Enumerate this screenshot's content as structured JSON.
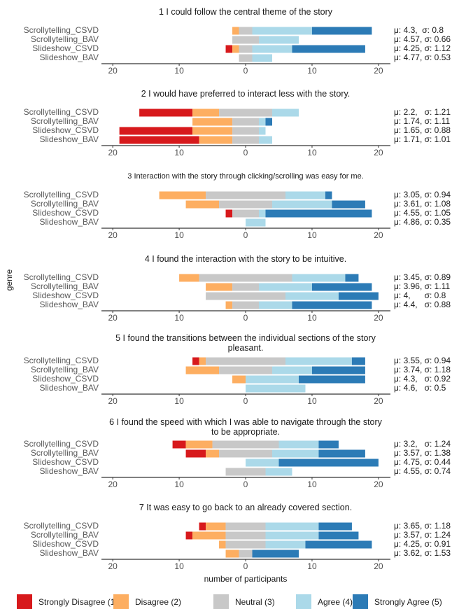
{
  "legend": [
    {
      "name": "Strongly Disagree (1)",
      "color": "#d7191c"
    },
    {
      "name": "Disagree (2)",
      "color": "#fdae61"
    },
    {
      "name": "Neutral (3)",
      "color": "#c8c8c8"
    },
    {
      "name": "Agree (4)",
      "color": "#abd9e9"
    },
    {
      "name": "Strongly Agree (5)",
      "color": "#2c7bb6"
    }
  ],
  "xlabel": "number of participants",
  "ylabel": "genre",
  "chart_data": [
    {
      "type": "bar",
      "title": "1 I could follow the central theme of the story",
      "categories": [
        "Scrollytelling_CSVD",
        "Scrollytelling_BAV",
        "Slideshow_CSVD",
        "Slideshow_BAV"
      ],
      "series": [
        {
          "values": [
            0,
            0,
            1,
            0
          ]
        },
        {
          "values": [
            1,
            0,
            1,
            0
          ]
        },
        {
          "values": [
            2,
            4,
            2,
            2
          ]
        },
        {
          "values": [
            9,
            6,
            6,
            3
          ]
        },
        {
          "values": [
            9,
            0,
            11,
            0
          ]
        }
      ],
      "annotations": [
        "μ: 4.3,  σ: 0.8",
        "μ: 4.57, σ: 0.66",
        "μ: 4.25, σ: 1.12",
        "μ: 4.77, σ: 0.53"
      ],
      "xlim": [
        -21.7,
        21.8
      ],
      "xticks": [
        {
          "value": -20,
          "label": "20"
        },
        {
          "value": -10,
          "label": "10"
        },
        0,
        10,
        20
      ]
    },
    {
      "type": "bar",
      "title": "2 I would have preferred to interact less with the story.",
      "categories": [
        "Scrollytelling_CSVD",
        "Scrollytelling_BAV",
        "Slideshow_CSVD",
        "Slideshow_BAV"
      ],
      "series": [
        {
          "values": [
            8,
            0,
            11,
            12
          ]
        },
        {
          "values": [
            4,
            6,
            6,
            5
          ]
        },
        {
          "values": [
            8,
            4,
            4,
            4
          ]
        },
        {
          "values": [
            4,
            1,
            1,
            2
          ]
        },
        {
          "values": [
            0,
            1,
            0,
            0
          ]
        }
      ],
      "annotations": [
        "μ: 2.2,   σ: 1.21",
        "μ: 1.74, σ: 1.11",
        "μ: 1.65, σ: 0.88",
        "μ: 1.71, σ: 1.01"
      ],
      "xlim": [
        -21.7,
        21.8
      ],
      "xticks": [
        {
          "value": -20,
          "label": "20"
        },
        {
          "value": -10,
          "label": "10"
        },
        0,
        10,
        20
      ]
    },
    {
      "type": "bar",
      "title": "3 Interaction with the story through clicking/scrolling was easy for me.",
      "categories": [
        "Scrollytelling_CSVD",
        "Scrollytelling_BAV",
        "Slideshow_CSVD",
        "Slideshow_BAV"
      ],
      "series": [
        {
          "values": [
            0,
            0,
            1,
            0
          ]
        },
        {
          "values": [
            7,
            5,
            0,
            0
          ]
        },
        {
          "values": [
            12,
            8,
            4,
            0
          ]
        },
        {
          "values": [
            6,
            9,
            1,
            3
          ]
        },
        {
          "values": [
            1,
            5,
            16,
            0
          ]
        }
      ],
      "annotations": [
        "μ: 3.05, σ: 0.94",
        "μ: 3.61, σ: 1.08",
        "μ: 4.55, σ: 1.05",
        "μ: 4.86, σ: 0.35"
      ],
      "xlim": [
        -21.7,
        21.8
      ],
      "xticks": [
        {
          "value": -20,
          "label": "20"
        },
        {
          "value": -10,
          "label": "10"
        },
        0,
        10,
        20
      ]
    },
    {
      "type": "bar",
      "title": "4 I found the interaction with the story to be intuitive.",
      "categories": [
        "Scrollytelling_CSVD",
        "Scrollytelling_BAV",
        "Slideshow_CSVD",
        "Slideshow_BAV"
      ],
      "series": [
        {
          "values": [
            0,
            0,
            0,
            0
          ]
        },
        {
          "values": [
            3,
            4,
            0,
            1
          ]
        },
        {
          "values": [
            14,
            4,
            12,
            4
          ]
        },
        {
          "values": [
            8,
            8,
            8,
            5
          ]
        },
        {
          "values": [
            2,
            9,
            6,
            12
          ]
        }
      ],
      "annotations": [
        "μ: 3.45, σ: 0.89",
        "μ: 3.96, σ: 1.11",
        "μ: 4,      σ: 0.8",
        "μ: 4.4,   σ: 0.88"
      ],
      "xlim": [
        -21.7,
        21.8
      ],
      "xticks": [
        {
          "value": -20,
          "label": "20"
        },
        {
          "value": -10,
          "label": "10"
        },
        0,
        10,
        20
      ]
    },
    {
      "type": "bar",
      "title": "5 I found the transitions between the individual sections of the story pleasant.",
      "categories": [
        "Scrollytelling_CSVD",
        "Scrollytelling_BAV",
        "Slideshow_CSVD",
        "Slideshow_BAV"
      ],
      "series": [
        {
          "values": [
            1,
            0,
            0,
            0
          ]
        },
        {
          "values": [
            1,
            5,
            2,
            0
          ]
        },
        {
          "values": [
            12,
            8,
            0,
            0
          ]
        },
        {
          "values": [
            10,
            6,
            8,
            9
          ]
        },
        {
          "values": [
            2,
            8,
            10,
            0
          ]
        }
      ],
      "annotations": [
        "μ: 3.55, σ: 0.94",
        "μ: 3.74, σ: 1.18",
        "μ: 4.3,   σ: 0.92",
        "μ: 4.6,   σ: 0.5"
      ],
      "xlim": [
        -21.7,
        21.8
      ],
      "xticks": [
        {
          "value": -20,
          "label": "20"
        },
        {
          "value": -10,
          "label": "10"
        },
        0,
        10,
        20
      ]
    },
    {
      "type": "bar",
      "title": "6 I found the speed with which I was able to navigate through the story to be appropriate.",
      "categories": [
        "Scrollytelling_CSVD",
        "Scrollytelling_BAV",
        "Slideshow_CSVD",
        "Slideshow_BAV"
      ],
      "series": [
        {
          "values": [
            2,
            3,
            0,
            0
          ]
        },
        {
          "values": [
            4,
            2,
            0,
            0
          ]
        },
        {
          "values": [
            10,
            8,
            0,
            6
          ]
        },
        {
          "values": [
            6,
            7,
            5,
            4
          ]
        },
        {
          "values": [
            3,
            7,
            15,
            0
          ]
        }
      ],
      "annotations": [
        "μ: 3.2,   σ: 1.24",
        "μ: 3.57, σ: 1.38",
        "μ: 4.75, σ: 0.44",
        "μ: 4.55, σ: 0.74"
      ],
      "xlim": [
        -21.7,
        21.8
      ],
      "xticks": [
        {
          "value": -20,
          "label": "20"
        },
        {
          "value": -10,
          "label": "10"
        },
        0,
        10,
        20
      ]
    },
    {
      "type": "bar",
      "title": "7 It was easy to go back to an already covered section.",
      "categories": [
        "Scrollytelling_CSVD",
        "Scrollytelling_BAV",
        "Slideshow_CSVD",
        "Slideshow_BAV"
      ],
      "series": [
        {
          "values": [
            1,
            1,
            0,
            0
          ]
        },
        {
          "values": [
            3,
            5,
            1,
            2
          ]
        },
        {
          "values": [
            6,
            6,
            6,
            2
          ]
        },
        {
          "values": [
            8,
            8,
            6,
            0
          ]
        },
        {
          "values": [
            5,
            6,
            10,
            7
          ]
        }
      ],
      "annotations": [
        "μ: 3.65, σ: 1.18",
        "μ: 3.57, σ: 1.24",
        "μ: 4.25, σ: 0.91",
        "μ: 3.62, σ: 1.53"
      ],
      "xlim": [
        -21.7,
        21.8
      ],
      "xticks": [
        {
          "value": -20,
          "label": "20"
        },
        {
          "value": -10,
          "label": "10"
        },
        0,
        10,
        20
      ]
    }
  ]
}
